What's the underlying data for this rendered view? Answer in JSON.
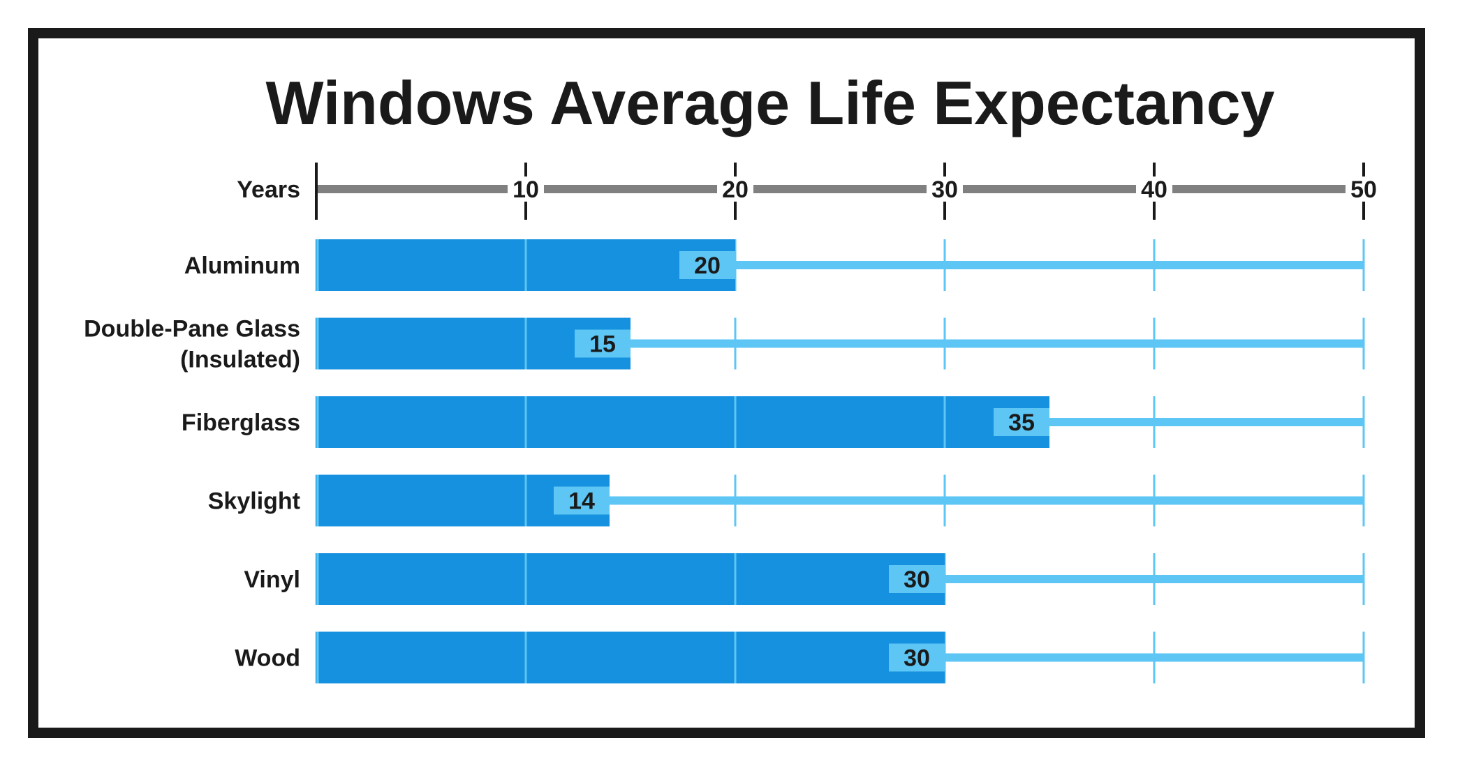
{
  "colors": {
    "bar": "#1591e0",
    "track": "#5dc6f5",
    "label_box": "#5dc6f5",
    "axis": "#808080",
    "text": "#1a1a1a",
    "frame": "#1a1a1a"
  },
  "chart_data": {
    "type": "bar",
    "orientation": "horizontal",
    "title": "Windows Average Life Expectancy",
    "xlabel": "Years",
    "xlim": [
      0,
      50
    ],
    "xticks": [
      10,
      20,
      30,
      40,
      50
    ],
    "categories": [
      [
        "Aluminum"
      ],
      [
        "Double-Pane Glass",
        "(Insulated)"
      ],
      [
        "Fiberglass"
      ],
      [
        "Skylight"
      ],
      [
        "Vinyl"
      ],
      [
        "Wood"
      ]
    ],
    "values": [
      20,
      15,
      35,
      14,
      30,
      30
    ],
    "value_labels": [
      "20",
      "15",
      "35",
      "14",
      "30",
      "30"
    ],
    "axis_position": "top",
    "grid": true,
    "legend": "none"
  }
}
